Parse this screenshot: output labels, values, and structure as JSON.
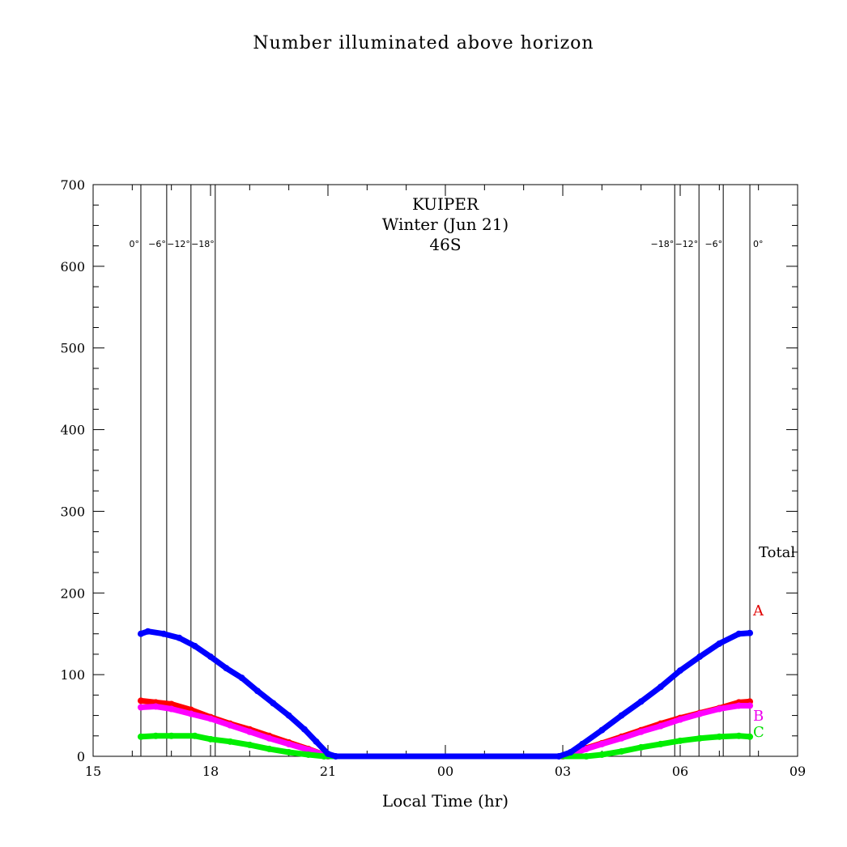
{
  "title": "Number illuminated above horizon",
  "chart_data": {
    "type": "line",
    "title": "Number illuminated above horizon",
    "xlabel": "Local Time (hr)",
    "ylabel": "",
    "annotation": {
      "line1": "KUIPER",
      "line2": "Winter (Jun 21)",
      "line3": "46S"
    },
    "xlim": [
      15,
      33
    ],
    "ylim": [
      0,
      700
    ],
    "x_ticks": [
      {
        "value": 15,
        "label": "15"
      },
      {
        "value": 18,
        "label": "18"
      },
      {
        "value": 21,
        "label": "21"
      },
      {
        "value": 24,
        "label": "00"
      },
      {
        "value": 27,
        "label": "03"
      },
      {
        "value": 30,
        "label": "06"
      },
      {
        "value": 33,
        "label": "09"
      }
    ],
    "y_ticks": [
      {
        "value": 0,
        "label": "0"
      },
      {
        "value": 100,
        "label": "100"
      },
      {
        "value": 200,
        "label": "200"
      },
      {
        "value": 300,
        "label": "300"
      },
      {
        "value": 400,
        "label": "400"
      },
      {
        "value": 500,
        "label": "500"
      },
      {
        "value": 600,
        "label": "600"
      },
      {
        "value": 700,
        "label": "700"
      }
    ],
    "sun_elevation_lines": [
      {
        "x": 16.22,
        "label": "0°"
      },
      {
        "x": 16.88,
        "label": "−6°"
      },
      {
        "x": 17.5,
        "label": "−12°"
      },
      {
        "x": 18.12,
        "label": "−18°"
      },
      {
        "x": 29.86,
        "label": "−18°"
      },
      {
        "x": 30.48,
        "label": "−12°"
      },
      {
        "x": 31.1,
        "label": "−6°"
      },
      {
        "x": 31.78,
        "label": "0°"
      }
    ],
    "legend": [
      {
        "label": "Total",
        "color": "#000000"
      },
      {
        "label": "A",
        "color": "#e00000"
      },
      {
        "label": "B",
        "color": "#ee00ee"
      },
      {
        "label": "C",
        "color": "#00dd00"
      }
    ],
    "series": [
      {
        "name": "A",
        "color": "#ff0000",
        "points": [
          [
            16.22,
            68
          ],
          [
            16.6,
            66
          ],
          [
            17.0,
            64
          ],
          [
            17.5,
            57
          ],
          [
            18.0,
            48
          ],
          [
            18.5,
            40
          ],
          [
            19.0,
            33
          ],
          [
            19.5,
            25
          ],
          [
            20.0,
            17
          ],
          [
            20.5,
            9
          ],
          [
            20.9,
            2
          ],
          [
            21.0,
            0
          ],
          [
            27.0,
            0
          ],
          [
            27.3,
            5
          ],
          [
            27.6,
            10
          ],
          [
            28.0,
            16
          ],
          [
            28.5,
            24
          ],
          [
            29.0,
            32
          ],
          [
            29.5,
            40
          ],
          [
            30.0,
            47
          ],
          [
            30.5,
            53
          ],
          [
            31.0,
            59
          ],
          [
            31.5,
            66
          ],
          [
            31.78,
            67
          ]
        ]
      },
      {
        "name": "B",
        "color": "#ff00ff",
        "points": [
          [
            16.22,
            60
          ],
          [
            16.6,
            61
          ],
          [
            17.0,
            58
          ],
          [
            17.5,
            52
          ],
          [
            18.0,
            46
          ],
          [
            18.5,
            38
          ],
          [
            19.0,
            30
          ],
          [
            19.5,
            22
          ],
          [
            20.0,
            15
          ],
          [
            20.5,
            8
          ],
          [
            20.9,
            2
          ],
          [
            21.0,
            0
          ],
          [
            27.0,
            0
          ],
          [
            27.3,
            4
          ],
          [
            27.6,
            9
          ],
          [
            28.0,
            15
          ],
          [
            28.5,
            22
          ],
          [
            29.0,
            30
          ],
          [
            29.5,
            37
          ],
          [
            30.0,
            45
          ],
          [
            30.5,
            52
          ],
          [
            31.0,
            58
          ],
          [
            31.5,
            62
          ],
          [
            31.78,
            62
          ]
        ]
      },
      {
        "name": "C",
        "color": "#00ee00",
        "points": [
          [
            16.22,
            24
          ],
          [
            16.6,
            25
          ],
          [
            17.0,
            25
          ],
          [
            17.6,
            25
          ],
          [
            18.0,
            21
          ],
          [
            18.5,
            18
          ],
          [
            19.0,
            14
          ],
          [
            19.5,
            9
          ],
          [
            20.0,
            5
          ],
          [
            20.5,
            2
          ],
          [
            20.9,
            0
          ],
          [
            27.6,
            0
          ],
          [
            28.0,
            2
          ],
          [
            28.5,
            6
          ],
          [
            29.0,
            11
          ],
          [
            29.5,
            15
          ],
          [
            30.0,
            19
          ],
          [
            30.5,
            22
          ],
          [
            31.0,
            24
          ],
          [
            31.5,
            25
          ],
          [
            31.78,
            24
          ]
        ]
      },
      {
        "name": "Total",
        "color": "#0000ff",
        "points": [
          [
            16.22,
            150
          ],
          [
            16.4,
            153
          ],
          [
            16.8,
            150
          ],
          [
            17.2,
            145
          ],
          [
            17.6,
            135
          ],
          [
            18.0,
            122
          ],
          [
            18.4,
            108
          ],
          [
            18.8,
            96
          ],
          [
            19.2,
            80
          ],
          [
            19.6,
            65
          ],
          [
            20.0,
            50
          ],
          [
            20.4,
            33
          ],
          [
            20.7,
            18
          ],
          [
            21.0,
            3
          ],
          [
            21.2,
            0
          ],
          [
            26.9,
            0
          ],
          [
            27.2,
            5
          ],
          [
            27.5,
            15
          ],
          [
            28.0,
            32
          ],
          [
            28.5,
            50
          ],
          [
            29.0,
            67
          ],
          [
            29.5,
            85
          ],
          [
            30.0,
            105
          ],
          [
            30.5,
            122
          ],
          [
            31.0,
            138
          ],
          [
            31.5,
            150
          ],
          [
            31.78,
            151
          ]
        ]
      }
    ]
  }
}
